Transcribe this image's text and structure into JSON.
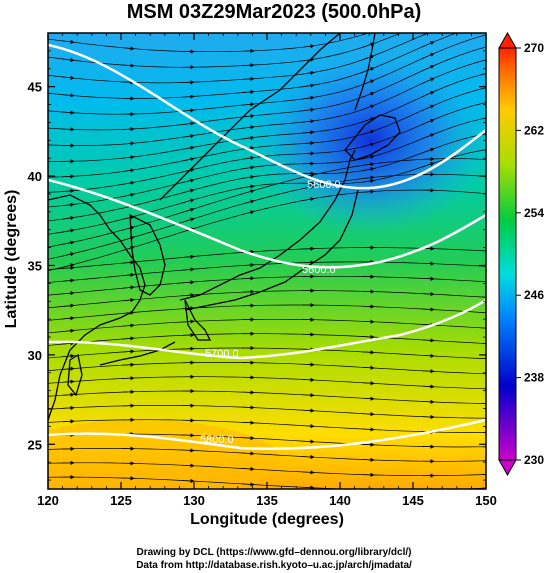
{
  "title": "MSM 03Z29Mar2023 (500.0hPa)",
  "axes": {
    "xlabel": "Longitude (degrees)",
    "ylabel": "Latitude  (degrees)",
    "xticks": [
      "120",
      "125",
      "130",
      "135",
      "140",
      "145",
      "150"
    ],
    "yticks": [
      "25",
      "30",
      "35",
      "40",
      "45"
    ],
    "xlim": [
      120,
      150
    ],
    "ylim": [
      22.5,
      48
    ]
  },
  "colorbar": {
    "ticks": [
      "270",
      "262",
      "254",
      "246",
      "238",
      "230"
    ],
    "range": [
      230,
      270
    ],
    "colors": [
      "#cc00cc",
      "#0000cc",
      "#0088ff",
      "#00dddd",
      "#00cc44",
      "#aadd00",
      "#ffcc00",
      "#ff6600",
      "#ff2200"
    ]
  },
  "contours": [
    {
      "label": "5600.0"
    },
    {
      "label": "5600.0"
    },
    {
      "label": "5700.0"
    },
    {
      "label": "5800.0"
    }
  ],
  "credits": {
    "line1": "Drawing by DCL (https://www.gfd–dennou.org/library/dcl/)",
    "line2": "Data from http://database.rish.kyoto–u.ac.jp/arch/jmadata/"
  }
}
